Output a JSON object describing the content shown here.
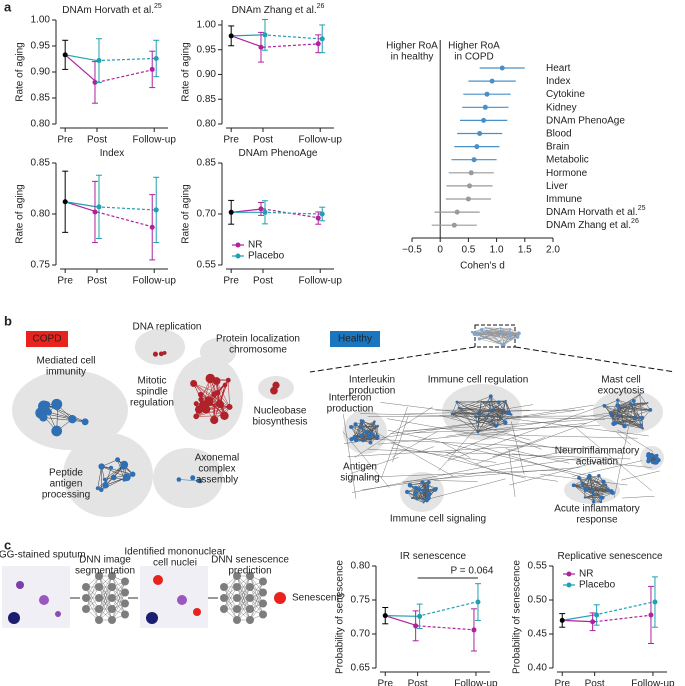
{
  "panels": [
    "a",
    "b",
    "c"
  ],
  "chart_data": [
    {
      "type": "line",
      "title": "DNAm Horvath et al.",
      "title_ref": "25",
      "ylabel": "Rate of aging",
      "categories": [
        "Pre",
        "Post",
        "Follow-up"
      ],
      "ylim": [
        0.8,
        1.0
      ],
      "yticks": [
        {
          "value": 0.8,
          "label": "0.80"
        },
        0.85,
        {
          "value": 0.9,
          "label": "0.90"
        },
        0.95,
        {
          "value": 1.0,
          "label": "1.00"
        }
      ],
      "pre_color": "#000000",
      "series": [
        {
          "name": "NR",
          "color": "#b0219e",
          "values": [
            0.933,
            0.88,
            0.905
          ],
          "errors": [
            0.028,
            0.04,
            0.035
          ]
        },
        {
          "name": "Placebo",
          "color": "#1fa0b3",
          "values": [
            0.933,
            0.922,
            0.926
          ],
          "errors": [
            0.028,
            0.042,
            0.035
          ]
        }
      ]
    },
    {
      "type": "line",
      "title": "DNAm Zhang et al.",
      "title_ref": "26",
      "ylabel": "Rate of aging",
      "categories": [
        "Pre",
        "Post",
        "Follow-up"
      ],
      "ylim": [
        0.8,
        1.01
      ],
      "yticks": [
        {
          "value": 0.8,
          "label": "0.80"
        },
        0.85,
        {
          "value": 0.9,
          "label": "0.90"
        },
        0.95,
        {
          "value": 1.0,
          "label": "1.00"
        }
      ],
      "pre_color": "#000000",
      "series": [
        {
          "name": "NR",
          "color": "#b0219e",
          "values": [
            0.978,
            0.955,
            0.962
          ],
          "errors": [
            0.02,
            0.03,
            0.018
          ]
        },
        {
          "name": "Placebo",
          "color": "#1fa0b3",
          "values": [
            0.978,
            0.98,
            0.972
          ],
          "errors": [
            0.02,
            0.031,
            0.028
          ]
        }
      ]
    },
    {
      "type": "line",
      "title": "Index",
      "ylabel": "Rate of aging",
      "categories": [
        "Pre",
        "Post",
        "Follow-up"
      ],
      "ylim": [
        0.75,
        0.85
      ],
      "yticks": [
        0.75,
        {
          "value": 0.8,
          "label": "0.80"
        },
        0.85
      ],
      "pre_color": "#000000",
      "series": [
        {
          "name": "NR",
          "color": "#b0219e",
          "values": [
            0.812,
            0.802,
            0.787
          ],
          "errors": [
            0.03,
            0.03,
            0.032
          ]
        },
        {
          "name": "Placebo",
          "color": "#1fa0b3",
          "values": [
            0.812,
            0.807,
            0.804
          ],
          "errors": [
            0.03,
            0.031,
            0.032
          ]
        }
      ]
    },
    {
      "type": "line",
      "title": "DNAm PhenoAge",
      "ylabel": "Rate of aging",
      "categories": [
        "Pre",
        "Post",
        "Follow-up"
      ],
      "ylim": [
        0.55,
        0.85
      ],
      "yticks": [
        0.55,
        {
          "value": 0.7,
          "label": "0.70"
        },
        0.85
      ],
      "pre_color": "#000000",
      "legend": "lower left",
      "series": [
        {
          "name": "NR",
          "color": "#b0219e",
          "values": [
            0.705,
            0.715,
            0.688
          ],
          "errors": [
            0.035,
            0.019,
            0.018
          ]
        },
        {
          "name": "Placebo",
          "color": "#1fa0b3",
          "values": [
            0.705,
            0.705,
            0.7
          ],
          "errors": [
            0.035,
            0.034,
            0.02
          ]
        }
      ]
    },
    {
      "type": "forest",
      "xlabel": "Cohen's d",
      "annotations": [
        [
          "Higher RoA",
          "in healthy"
        ],
        [
          "Higher RoA",
          "in COPD"
        ]
      ],
      "categories": [
        "Heart",
        "Index",
        "Cytokine",
        "Kidney",
        "DNAm PhenoAge",
        "Blood",
        "Brain",
        "Metabolic",
        "Hormone",
        "Liver",
        "Immune",
        "DNAm Horvath et al.",
        "DNAm Zhang et al."
      ],
      "category_refs": [
        null,
        null,
        null,
        null,
        null,
        null,
        null,
        null,
        null,
        null,
        null,
        "25",
        "26"
      ],
      "values": [
        1.1,
        0.92,
        0.83,
        0.8,
        0.77,
        0.7,
        0.65,
        0.6,
        0.55,
        0.52,
        0.5,
        0.3,
        0.25
      ],
      "errors": [
        0.4,
        0.42,
        0.42,
        0.41,
        0.42,
        0.4,
        0.4,
        0.4,
        0.4,
        0.41,
        0.4,
        0.4,
        0.4
      ],
      "colors": [
        "#4a90c8",
        "#4a90c8",
        "#4a90c8",
        "#4a90c8",
        "#4a90c8",
        "#4a90c8",
        "#4a90c8",
        "#4a90c8",
        "#9a9a9a",
        "#9a9a9a",
        "#9a9a9a",
        "#9a9a9a",
        "#9a9a9a"
      ],
      "xlim": [
        -0.5,
        2.0
      ],
      "xticks": [
        {
          "value": -0.5,
          "label": "−0.5"
        },
        0,
        0.5,
        {
          "value": 1.0,
          "label": "1.0"
        },
        1.5,
        {
          "value": 2.0,
          "label": "2.0"
        }
      ]
    },
    {
      "type": "line",
      "title": "IR senescence",
      "ylabel": "Probability of senescence",
      "categories": [
        "Pre",
        "Post",
        "Follow-up"
      ],
      "ylim": [
        0.65,
        0.8
      ],
      "yticks": [
        0.65,
        {
          "value": 0.7,
          "label": "0.70"
        },
        0.75,
        {
          "value": 0.8,
          "label": "0.80"
        }
      ],
      "pre_color": "#000000",
      "annotation": "P = 0.064",
      "series": [
        {
          "name": "NR",
          "color": "#b0219e",
          "values": [
            0.727,
            0.712,
            0.706
          ],
          "errors": [
            0.012,
            0.022,
            0.031
          ]
        },
        {
          "name": "Placebo",
          "color": "#1fa0b3",
          "values": [
            0.727,
            0.726,
            0.747
          ],
          "errors": [
            0.012,
            0.018,
            0.027
          ]
        }
      ]
    },
    {
      "type": "line",
      "title": "Replicative senescence",
      "ylabel": "Probability of senescence",
      "categories": [
        "Pre",
        "Post",
        "Follow-up"
      ],
      "ylim": [
        0.4,
        0.55
      ],
      "yticks": [
        {
          "value": 0.4,
          "label": "0.40"
        },
        0.45,
        {
          "value": 0.5,
          "label": "0.50"
        },
        0.55
      ],
      "pre_color": "#000000",
      "legend": "upper left",
      "series": [
        {
          "name": "NR",
          "color": "#b0219e",
          "values": [
            0.47,
            0.468,
            0.478
          ],
          "errors": [
            0.01,
            0.013,
            0.042
          ]
        },
        {
          "name": "Placebo",
          "color": "#1fa0b3",
          "values": [
            0.47,
            0.478,
            0.497
          ],
          "errors": [
            0.01,
            0.015,
            0.037
          ]
        }
      ]
    }
  ],
  "network": {
    "copd_label": "COPD",
    "healthy_label": "Healthy",
    "copd_clusters": [
      [
        "DNA replication"
      ],
      [
        "Protein localization",
        "chromosome"
      ],
      [
        "Mediated cell",
        "immunity"
      ],
      [
        "Mitotic",
        "spindle",
        "regulation"
      ],
      [
        "Nucleobase",
        "biosynthesis"
      ],
      [
        "Peptide",
        "antigen",
        "processing"
      ],
      [
        "Axonemal",
        "complex",
        "assembly"
      ]
    ],
    "healthy_clusters": [
      [
        "Interleukin",
        "production"
      ],
      [
        "Immune cell regulation"
      ],
      [
        "Mast cell",
        "exocytosis"
      ],
      [
        "Interferon",
        "production"
      ],
      [
        "Antigen",
        "signaling"
      ],
      [
        "Neuroinflammatory",
        "activation"
      ],
      [
        "Immune cell signaling"
      ],
      [
        "Acute inflammatory",
        "response"
      ]
    ]
  },
  "pipeline": {
    "steps": [
      [
        "MGG-stained sputum"
      ],
      [
        "DNN image",
        "segmentation"
      ],
      [
        "Identified mononuclear",
        "cell nuclei"
      ],
      [
        "DNN senescence",
        "prediction"
      ],
      [
        "Senescent?"
      ]
    ]
  }
}
